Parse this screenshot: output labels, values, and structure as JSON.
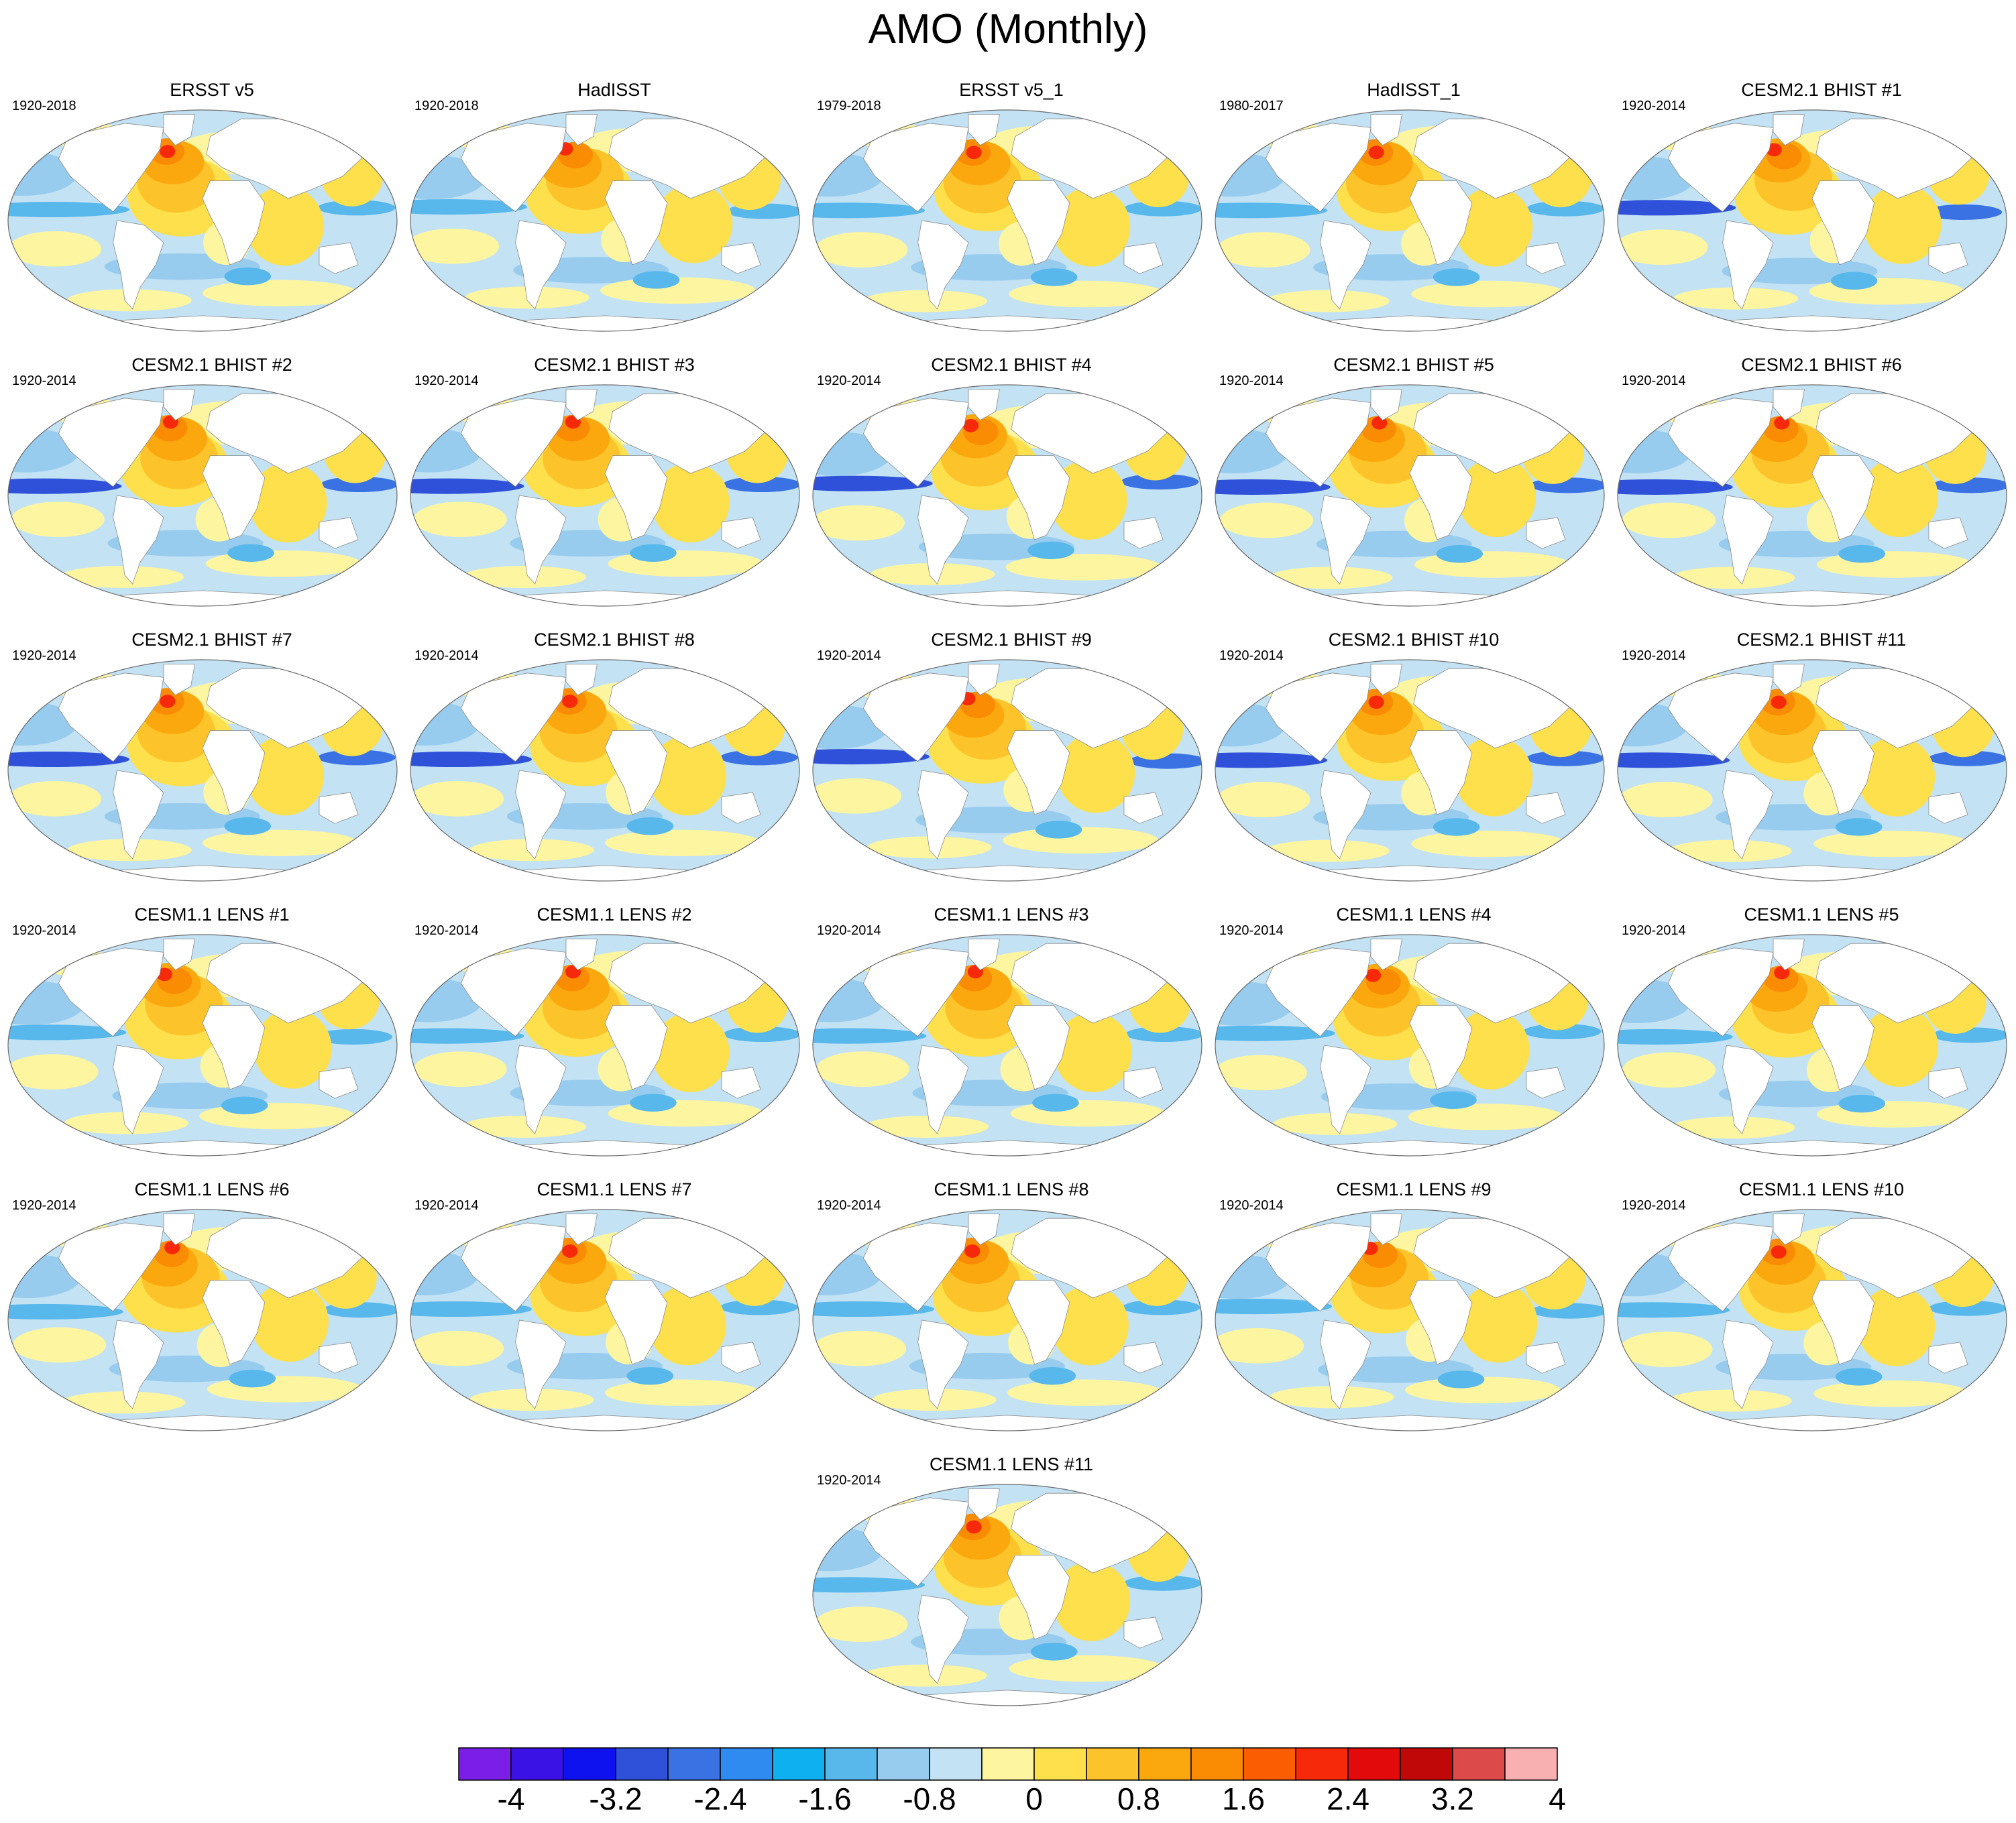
{
  "title": "AMO (Monthly)",
  "panels": [
    {
      "title": "ERSST v5",
      "years": "1920-2018"
    },
    {
      "title": "HadISST",
      "years": "1920-2018"
    },
    {
      "title": "ERSST v5_1",
      "years": "1979-2018"
    },
    {
      "title": "HadISST_1",
      "years": "1980-2017"
    },
    {
      "title": "CESM2.1 BHIST #1",
      "years": "1920-2014"
    },
    {
      "title": "CESM2.1 BHIST #2",
      "years": "1920-2014"
    },
    {
      "title": "CESM2.1 BHIST #3",
      "years": "1920-2014"
    },
    {
      "title": "CESM2.1 BHIST #4",
      "years": "1920-2014"
    },
    {
      "title": "CESM2.1 BHIST #5",
      "years": "1920-2014"
    },
    {
      "title": "CESM2.1 BHIST #6",
      "years": "1920-2014"
    },
    {
      "title": "CESM2.1 BHIST #7",
      "years": "1920-2014"
    },
    {
      "title": "CESM2.1 BHIST #8",
      "years": "1920-2014"
    },
    {
      "title": "CESM2.1 BHIST #9",
      "years": "1920-2014"
    },
    {
      "title": "CESM2.1 BHIST #10",
      "years": "1920-2014"
    },
    {
      "title": "CESM2.1 BHIST #11",
      "years": "1920-2014"
    },
    {
      "title": "CESM1.1 LENS #1",
      "years": "1920-2014"
    },
    {
      "title": "CESM1.1 LENS #2",
      "years": "1920-2014"
    },
    {
      "title": "CESM1.1 LENS #3",
      "years": "1920-2014"
    },
    {
      "title": "CESM1.1 LENS #4",
      "years": "1920-2014"
    },
    {
      "title": "CESM1.1 LENS #5",
      "years": "1920-2014"
    },
    {
      "title": "CESM1.1 LENS #6",
      "years": "1920-2014"
    },
    {
      "title": "CESM1.1 LENS #7",
      "years": "1920-2014"
    },
    {
      "title": "CESM1.1 LENS #8",
      "years": "1920-2014"
    },
    {
      "title": "CESM1.1 LENS #9",
      "years": "1920-2014"
    },
    {
      "title": "CESM1.1 LENS #10",
      "years": "1920-2014"
    },
    {
      "title": "CESM1.1 LENS #11",
      "years": "1920-2014"
    }
  ],
  "colorbar": {
    "labels": [
      "-4",
      "-3.2",
      "-2.4",
      "-1.6",
      "-0.8",
      "0",
      "0.8",
      "1.6",
      "2.4",
      "3.2",
      "4"
    ],
    "colors": [
      "#7b1fe8",
      "#3a12e6",
      "#0e12ef",
      "#2f50d8",
      "#3a72e4",
      "#2f8bef",
      "#0fb0ef",
      "#58b8ec",
      "#98ccee",
      "#c3e2f4",
      "#fdf5a0",
      "#fde04c",
      "#fcc42a",
      "#fba80e",
      "#fa8c04",
      "#fb5e02",
      "#f62a0a",
      "#e20a0a",
      "#c10808",
      "#dc4a4a",
      "#f9b0b0"
    ]
  },
  "field_colors": {
    "ocean_base": "#c3e2f4",
    "ocean_edge": "#98ccee",
    "land": "#ffffff",
    "warm1": "#fdf5a0",
    "warm2": "#fde04c",
    "warm3": "#fcc42a",
    "warm4": "#fba80e",
    "warm5": "#fa8c04",
    "warm6": "#f62a0a",
    "cool1": "#98ccee",
    "cool2": "#58b8ec",
    "cool3": "#3a72e4",
    "cool4": "#2f50d8"
  }
}
